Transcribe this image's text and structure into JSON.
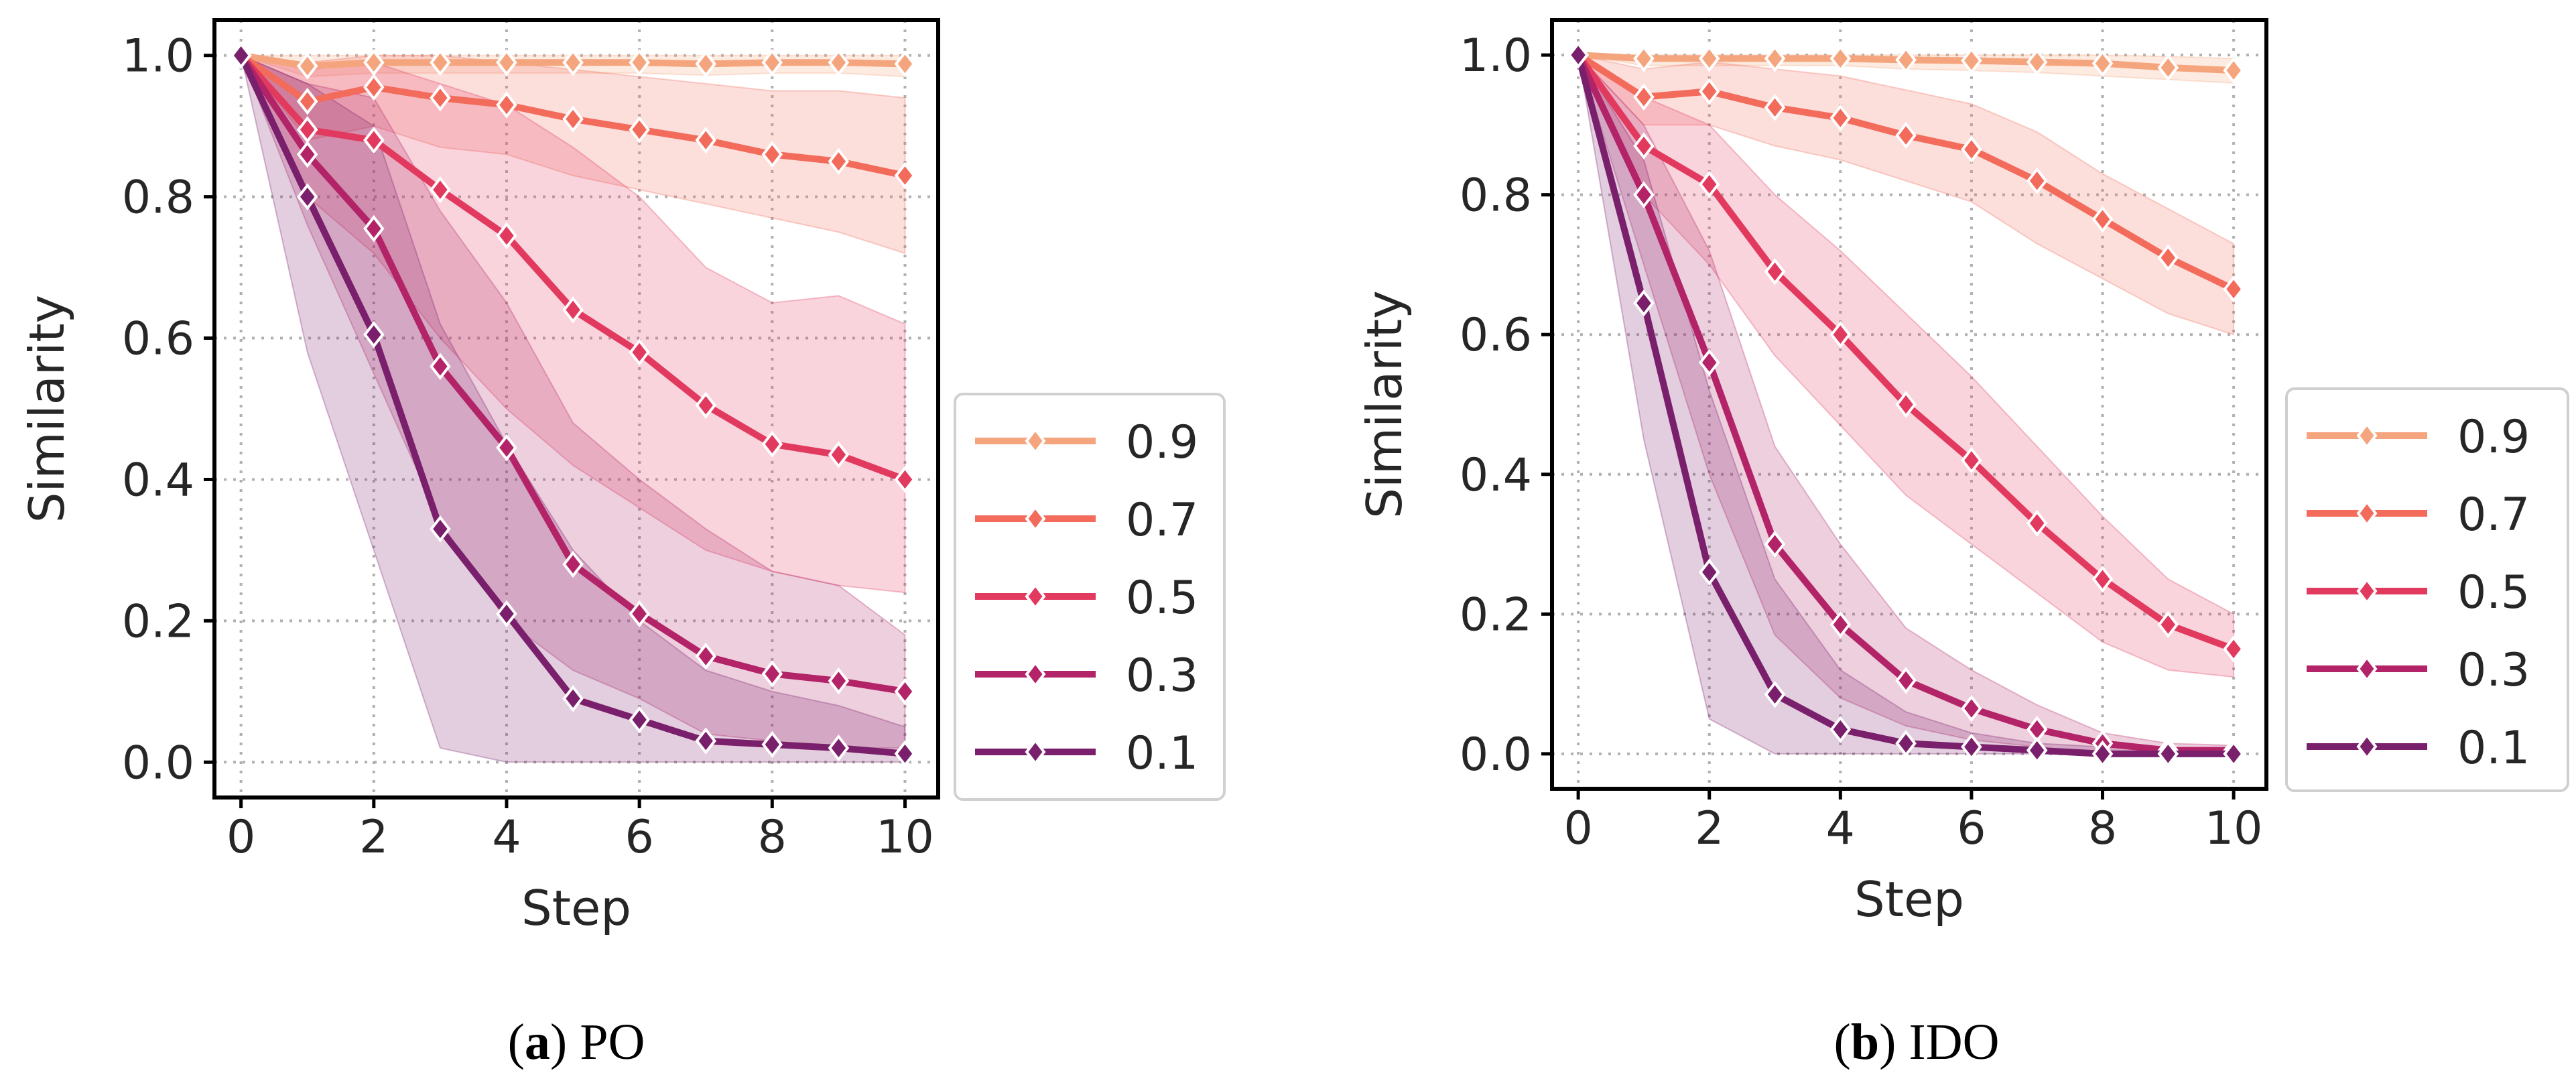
{
  "chart_data": [
    {
      "type": "line",
      "panel_letter": "a",
      "caption": "PO",
      "xlabel": "Step",
      "ylabel": "Similarity",
      "xlim": [
        -0.4,
        10.5
      ],
      "ylim": [
        -0.05,
        1.05
      ],
      "xticks": [
        0,
        2,
        4,
        6,
        8,
        10
      ],
      "xtick_labels": [
        "0",
        "2",
        "4",
        "6",
        "8",
        "10"
      ],
      "yticks": [
        0.0,
        0.2,
        0.4,
        0.6,
        0.8,
        1.0
      ],
      "ytick_labels": [
        "0.0",
        "0.2",
        "0.4",
        "0.6",
        "0.8",
        "1.0"
      ],
      "grid": true,
      "legend_position": "outside-right",
      "x": [
        0,
        1,
        2,
        3,
        4,
        5,
        6,
        7,
        8,
        9,
        10
      ],
      "series": [
        {
          "name": "0.9",
          "color": "#f4a57d",
          "values": [
            1.0,
            0.985,
            0.99,
            0.99,
            0.99,
            0.99,
            0.99,
            0.988,
            0.99,
            0.99,
            0.988
          ],
          "lower": [
            1.0,
            0.97,
            0.975,
            0.975,
            0.975,
            0.975,
            0.975,
            0.972,
            0.975,
            0.975,
            0.97
          ],
          "upper": [
            1.0,
            1.0,
            1.0,
            1.0,
            1.0,
            1.0,
            1.0,
            1.0,
            1.0,
            1.0,
            1.0
          ]
        },
        {
          "name": "0.7",
          "color": "#f26b5b",
          "values": [
            1.0,
            0.935,
            0.955,
            0.94,
            0.93,
            0.91,
            0.895,
            0.88,
            0.86,
            0.85,
            0.83
          ],
          "lower": [
            1.0,
            0.88,
            0.9,
            0.87,
            0.86,
            0.83,
            0.81,
            0.79,
            0.77,
            0.75,
            0.72
          ],
          "upper": [
            1.0,
            0.99,
            1.0,
            1.0,
            0.99,
            0.98,
            0.97,
            0.96,
            0.95,
            0.95,
            0.94
          ]
        },
        {
          "name": "0.5",
          "color": "#e2395f",
          "values": [
            1.0,
            0.895,
            0.88,
            0.81,
            0.745,
            0.64,
            0.58,
            0.505,
            0.45,
            0.435,
            0.4
          ],
          "lower": [
            1.0,
            0.8,
            0.72,
            0.6,
            0.5,
            0.42,
            0.36,
            0.3,
            0.27,
            0.25,
            0.24
          ],
          "upper": [
            1.0,
            0.98,
            0.99,
            0.96,
            0.93,
            0.87,
            0.8,
            0.7,
            0.65,
            0.66,
            0.62
          ]
        },
        {
          "name": "0.3",
          "color": "#b22367",
          "values": [
            1.0,
            0.86,
            0.755,
            0.56,
            0.445,
            0.28,
            0.21,
            0.15,
            0.125,
            0.115,
            0.1
          ],
          "lower": [
            1.0,
            0.76,
            0.55,
            0.34,
            0.2,
            0.13,
            0.09,
            0.04,
            0.03,
            0.02,
            0.02
          ],
          "upper": [
            1.0,
            0.96,
            0.94,
            0.78,
            0.65,
            0.48,
            0.4,
            0.33,
            0.27,
            0.25,
            0.18
          ]
        },
        {
          "name": "0.1",
          "color": "#7a1f6b",
          "values": [
            1.0,
            0.8,
            0.605,
            0.33,
            0.21,
            0.09,
            0.06,
            0.03,
            0.025,
            0.02,
            0.012
          ],
          "lower": [
            1.0,
            0.58,
            0.3,
            0.02,
            0.0,
            0.0,
            0.0,
            0.0,
            0.0,
            0.0,
            0.0
          ],
          "upper": [
            1.0,
            0.96,
            0.9,
            0.62,
            0.45,
            0.3,
            0.2,
            0.13,
            0.1,
            0.08,
            0.05
          ]
        }
      ]
    },
    {
      "type": "line",
      "panel_letter": "b",
      "caption": "IDO",
      "xlabel": "Step",
      "ylabel": "Similarity",
      "xlim": [
        -0.4,
        10.5
      ],
      "ylim": [
        -0.05,
        1.05
      ],
      "xticks": [
        0,
        2,
        4,
        6,
        8,
        10
      ],
      "xtick_labels": [
        "0",
        "2",
        "4",
        "6",
        "8",
        "10"
      ],
      "yticks": [
        0.0,
        0.2,
        0.4,
        0.6,
        0.8,
        1.0
      ],
      "ytick_labels": [
        "0.0",
        "0.2",
        "0.4",
        "0.6",
        "0.8",
        "1.0"
      ],
      "grid": true,
      "legend_position": "outside-right",
      "x": [
        0,
        1,
        2,
        3,
        4,
        5,
        6,
        7,
        8,
        9,
        10
      ],
      "series": [
        {
          "name": "0.9",
          "color": "#f4a57d",
          "values": [
            1.0,
            0.995,
            0.995,
            0.995,
            0.995,
            0.993,
            0.992,
            0.99,
            0.988,
            0.982,
            0.978
          ],
          "lower": [
            1.0,
            0.985,
            0.985,
            0.985,
            0.985,
            0.98,
            0.978,
            0.975,
            0.97,
            0.965,
            0.96
          ],
          "upper": [
            1.0,
            1.0,
            1.0,
            1.0,
            1.0,
            1.0,
            1.0,
            1.0,
            1.0,
            0.998,
            0.995
          ]
        },
        {
          "name": "0.7",
          "color": "#f26b5b",
          "values": [
            1.0,
            0.94,
            0.948,
            0.925,
            0.91,
            0.885,
            0.865,
            0.82,
            0.765,
            0.71,
            0.665
          ],
          "lower": [
            1.0,
            0.9,
            0.9,
            0.87,
            0.85,
            0.82,
            0.79,
            0.73,
            0.68,
            0.63,
            0.6
          ],
          "upper": [
            1.0,
            0.98,
            0.99,
            0.98,
            0.97,
            0.95,
            0.93,
            0.89,
            0.83,
            0.78,
            0.73
          ]
        },
        {
          "name": "0.5",
          "color": "#e2395f",
          "values": [
            1.0,
            0.87,
            0.815,
            0.69,
            0.6,
            0.5,
            0.42,
            0.33,
            0.25,
            0.185,
            0.15
          ],
          "lower": [
            1.0,
            0.8,
            0.7,
            0.57,
            0.47,
            0.37,
            0.3,
            0.23,
            0.16,
            0.12,
            0.11
          ],
          "upper": [
            1.0,
            0.94,
            0.9,
            0.8,
            0.72,
            0.63,
            0.54,
            0.44,
            0.34,
            0.25,
            0.2
          ]
        },
        {
          "name": "0.3",
          "color": "#b22367",
          "values": [
            1.0,
            0.8,
            0.56,
            0.3,
            0.185,
            0.105,
            0.065,
            0.035,
            0.015,
            0.005,
            0.005
          ],
          "lower": [
            1.0,
            0.7,
            0.4,
            0.17,
            0.08,
            0.04,
            0.02,
            0.01,
            0.0,
            0.0,
            0.0
          ],
          "upper": [
            1.0,
            0.9,
            0.72,
            0.44,
            0.3,
            0.18,
            0.12,
            0.07,
            0.03,
            0.015,
            0.012
          ]
        },
        {
          "name": "0.1",
          "color": "#7a1f6b",
          "values": [
            1.0,
            0.645,
            0.26,
            0.085,
            0.035,
            0.015,
            0.01,
            0.005,
            0.0,
            0.0,
            0.0
          ],
          "lower": [
            1.0,
            0.45,
            0.05,
            0.0,
            0.0,
            0.0,
            0.0,
            0.0,
            0.0,
            0.0,
            0.0
          ],
          "upper": [
            1.0,
            0.85,
            0.52,
            0.25,
            0.12,
            0.06,
            0.03,
            0.015,
            0.01,
            0.005,
            0.005
          ]
        }
      ]
    }
  ]
}
